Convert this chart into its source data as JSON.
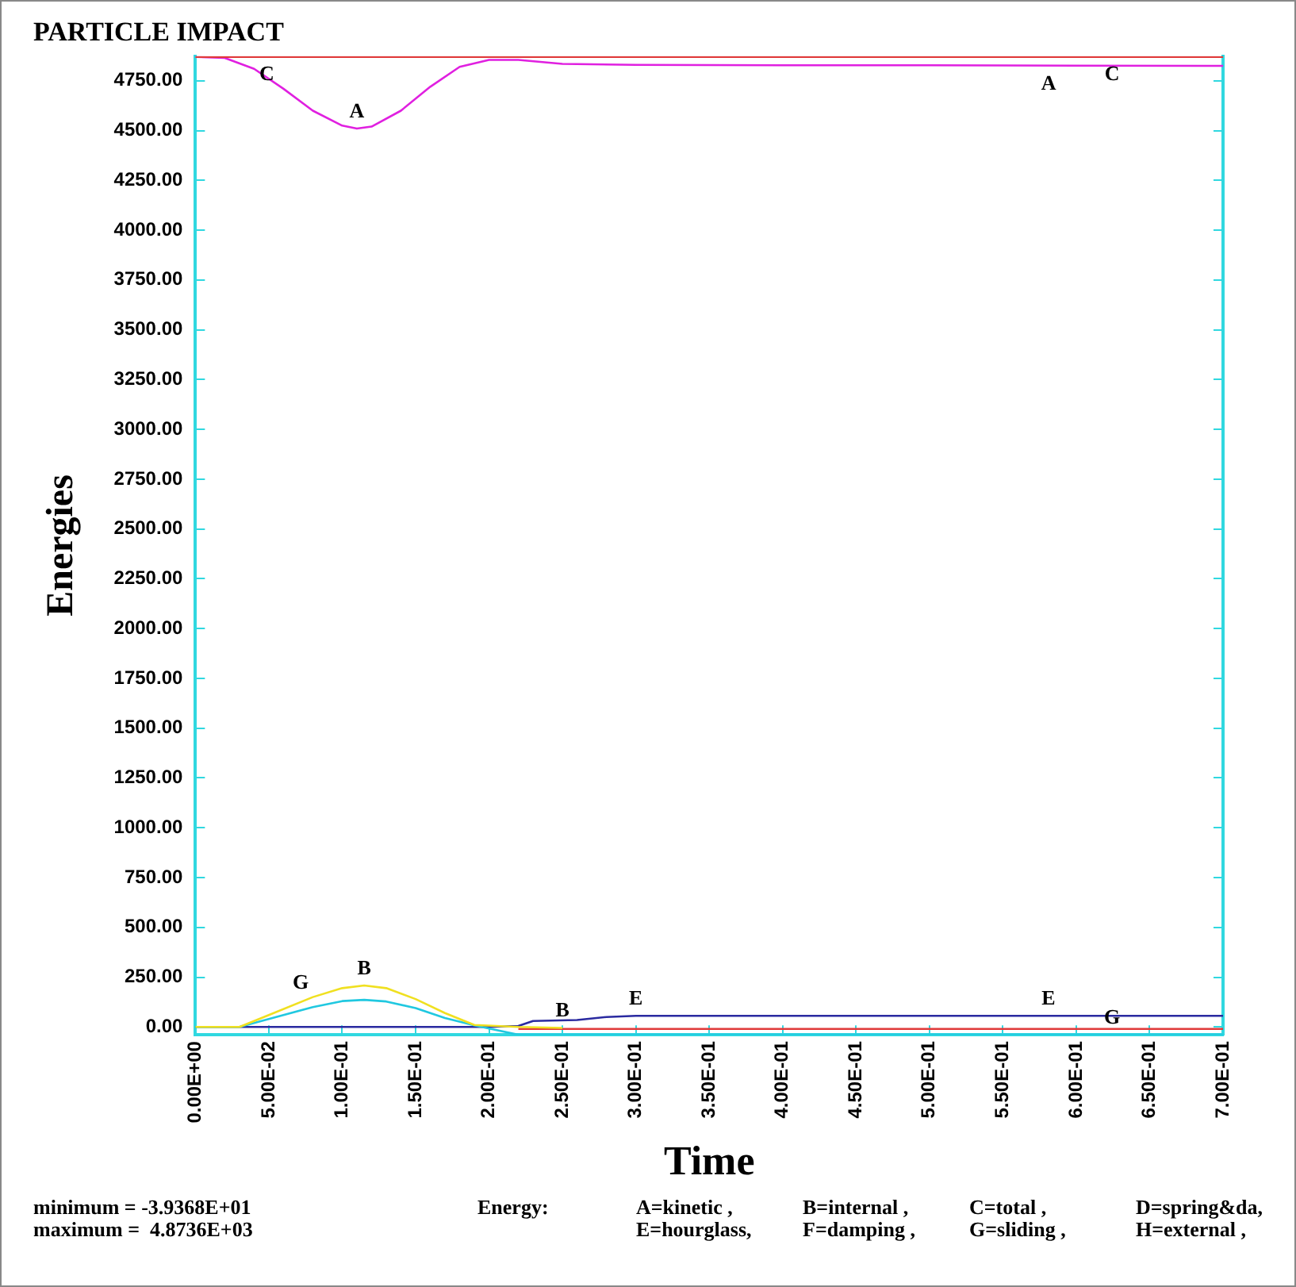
{
  "chart_data": {
    "type": "line",
    "title": "PARTICLE IMPACT",
    "xlabel": "Time",
    "ylabel": "Energies",
    "xlim": [
      0,
      0.7
    ],
    "ylim": [
      -39.368,
      4873.6
    ],
    "xticks": [
      {
        "value": 0,
        "label": "0.00E+00"
      },
      {
        "value": 0.05,
        "label": "5.00E-02"
      },
      {
        "value": 0.1,
        "label": "1.00E-01"
      },
      {
        "value": 0.15,
        "label": "1.50E-01"
      },
      {
        "value": 0.2,
        "label": "2.00E-01"
      },
      {
        "value": 0.25,
        "label": "2.50E-01"
      },
      {
        "value": 0.3,
        "label": "3.00E-01"
      },
      {
        "value": 0.35,
        "label": "3.50E-01"
      },
      {
        "value": 0.4,
        "label": "4.00E-01"
      },
      {
        "value": 0.45,
        "label": "4.50E-01"
      },
      {
        "value": 0.5,
        "label": "5.00E-01"
      },
      {
        "value": 0.55,
        "label": "5.50E-01"
      },
      {
        "value": 0.6,
        "label": "6.00E-01"
      },
      {
        "value": 0.65,
        "label": "6.50E-01"
      },
      {
        "value": 0.7,
        "label": "7.00E-01"
      }
    ],
    "yticks": [
      {
        "value": 0,
        "label": "0.00"
      },
      {
        "value": 250,
        "label": "250.00"
      },
      {
        "value": 500,
        "label": "500.00"
      },
      {
        "value": 750,
        "label": "750.00"
      },
      {
        "value": 1000,
        "label": "1000.00"
      },
      {
        "value": 1250,
        "label": "1250.00"
      },
      {
        "value": 1500,
        "label": "1500.00"
      },
      {
        "value": 1750,
        "label": "1750.00"
      },
      {
        "value": 2000,
        "label": "2000.00"
      },
      {
        "value": 2250,
        "label": "2250.00"
      },
      {
        "value": 2500,
        "label": "2500.00"
      },
      {
        "value": 2750,
        "label": "2750.00"
      },
      {
        "value": 3000,
        "label": "3000.00"
      },
      {
        "value": 3250,
        "label": "3250.00"
      },
      {
        "value": 3500,
        "label": "3500.00"
      },
      {
        "value": 3750,
        "label": "3750.00"
      },
      {
        "value": 4000,
        "label": "4000.00"
      },
      {
        "value": 4250,
        "label": "4250.00"
      },
      {
        "value": 4500,
        "label": "4500.00"
      },
      {
        "value": 4750,
        "label": "4750.00"
      }
    ],
    "grid": false,
    "legend": false,
    "marker": "none",
    "line_style": "solid",
    "series": [
      {
        "name": "C",
        "color": "#e03a3a",
        "x": [
          0,
          0.7
        ],
        "values": [
          4870,
          4870
        ]
      },
      {
        "name": "A",
        "color": "#e020e0",
        "x": [
          0,
          0.02,
          0.04,
          0.06,
          0.08,
          0.1,
          0.11,
          0.12,
          0.14,
          0.16,
          0.18,
          0.2,
          0.22,
          0.25,
          0.3,
          0.4,
          0.5,
          0.6,
          0.7
        ],
        "values": [
          4870,
          4865,
          4810,
          4710,
          4600,
          4525,
          4510,
          4520,
          4600,
          4720,
          4820,
          4855,
          4855,
          4835,
          4830,
          4828,
          4828,
          4826,
          4825
        ]
      },
      {
        "name": "B",
        "color": "#f0e020",
        "x": [
          0,
          0.03,
          0.05,
          0.08,
          0.1,
          0.115,
          0.13,
          0.15,
          0.17,
          0.19,
          0.22,
          0.25
        ],
        "values": [
          0,
          0,
          60,
          150,
          195,
          208,
          195,
          140,
          70,
          10,
          0,
          -5
        ]
      },
      {
        "name": "G",
        "color": "#20c8e0",
        "x": [
          0,
          0.03,
          0.05,
          0.08,
          0.1,
          0.115,
          0.13,
          0.15,
          0.17,
          0.19,
          0.22,
          0.25,
          0.7
        ],
        "values": [
          0,
          0,
          40,
          100,
          130,
          136,
          128,
          95,
          45,
          8,
          -39,
          -39,
          -39
        ]
      },
      {
        "color": "#e03a3a",
        "x": [
          0.22,
          0.7
        ],
        "values": [
          -10,
          -10
        ]
      },
      {
        "name": "E",
        "color": "#2a2aa0",
        "x": [
          0,
          0.2,
          0.22,
          0.23,
          0.26,
          0.28,
          0.3,
          0.7
        ],
        "values": [
          0,
          0,
          5,
          30,
          35,
          50,
          56,
          56
        ]
      }
    ],
    "annotations": [
      "minimum = -3.9368E+01",
      "maximum =  4.8736E+03",
      "Energy:",
      "A=kinetic ,",
      "B=internal ,",
      "C=total ,",
      "D=spring&da,",
      "E=hourglass,",
      "F=damping ,",
      "G=sliding ,",
      "H=external ,"
    ]
  }
}
